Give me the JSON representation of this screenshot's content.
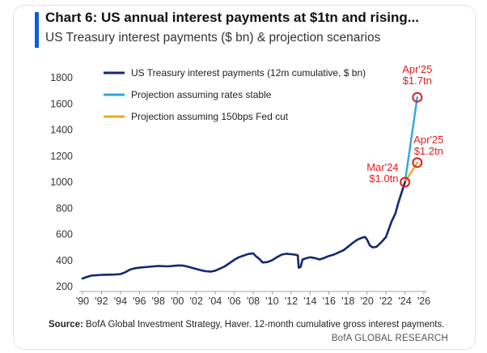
{
  "header": {
    "title": "Chart 6: US annual interest payments at $1tn and rising...",
    "subtitle": "US Treasury interest payments ($ bn) & projection scenarios"
  },
  "footer": {
    "source_label": "Source:",
    "source_text": "BofA Global Investment Strategy, Haver. 12-month cumulative gross interest payments.",
    "brand": "BofA GLOBAL RESEARCH"
  },
  "chart_data": {
    "type": "line",
    "title": "Chart 6: US annual interest payments at $1tn and rising...",
    "subtitle": "US Treasury interest payments ($ bn) & projection scenarios",
    "xlabel": "",
    "ylabel": "",
    "xlim": [
      1990,
      2026
    ],
    "ylim": [
      200,
      1800
    ],
    "y_ticks": [
      200,
      400,
      600,
      800,
      1000,
      1200,
      1400,
      1600,
      1800
    ],
    "x_ticks": [
      "'90",
      "'92",
      "'94",
      "'96",
      "'98",
      "'00",
      "'02",
      "'04",
      "'06",
      "'08",
      "'10",
      "'12",
      "'14",
      "'16",
      "'18",
      "'20",
      "'22",
      "'24",
      "'26"
    ],
    "legend_position": "top-left",
    "series": [
      {
        "name": "US Treasury interest payments (12m cumulative, $ bn)",
        "color": "#14286e",
        "points": [
          [
            1990.0,
            262
          ],
          [
            1990.5,
            275
          ],
          [
            1991.0,
            285
          ],
          [
            1992.0,
            290
          ],
          [
            1993.0,
            292
          ],
          [
            1993.5,
            293
          ],
          [
            1994.0,
            296
          ],
          [
            1994.5,
            310
          ],
          [
            1995.0,
            330
          ],
          [
            1995.5,
            340
          ],
          [
            1996.0,
            345
          ],
          [
            1997.0,
            352
          ],
          [
            1998.0,
            358
          ],
          [
            1999.0,
            355
          ],
          [
            2000.0,
            362
          ],
          [
            2000.5,
            362
          ],
          [
            2001.0,
            355
          ],
          [
            2001.5,
            345
          ],
          [
            2002.0,
            335
          ],
          [
            2002.5,
            325
          ],
          [
            2003.0,
            318
          ],
          [
            2003.5,
            315
          ],
          [
            2004.0,
            322
          ],
          [
            2004.5,
            338
          ],
          [
            2005.0,
            355
          ],
          [
            2005.5,
            380
          ],
          [
            2006.0,
            405
          ],
          [
            2006.5,
            425
          ],
          [
            2007.0,
            438
          ],
          [
            2007.5,
            450
          ],
          [
            2008.0,
            455
          ],
          [
            2008.3,
            432
          ],
          [
            2008.6,
            415
          ],
          [
            2009.0,
            385
          ],
          [
            2009.5,
            388
          ],
          [
            2010.0,
            402
          ],
          [
            2010.5,
            425
          ],
          [
            2011.0,
            445
          ],
          [
            2011.5,
            452
          ],
          [
            2012.0,
            448
          ],
          [
            2012.4,
            445
          ],
          [
            2012.7,
            440
          ],
          [
            2012.8,
            345
          ],
          [
            2013.0,
            350
          ],
          [
            2013.2,
            408
          ],
          [
            2013.5,
            415
          ],
          [
            2014.0,
            425
          ],
          [
            2014.5,
            418
          ],
          [
            2015.0,
            408
          ],
          [
            2015.5,
            420
          ],
          [
            2016.0,
            435
          ],
          [
            2016.5,
            445
          ],
          [
            2017.0,
            462
          ],
          [
            2017.5,
            478
          ],
          [
            2018.0,
            505
          ],
          [
            2018.5,
            535
          ],
          [
            2019.0,
            560
          ],
          [
            2019.5,
            575
          ],
          [
            2019.8,
            580
          ],
          [
            2020.0,
            560
          ],
          [
            2020.3,
            515
          ],
          [
            2020.6,
            500
          ],
          [
            2021.0,
            505
          ],
          [
            2021.5,
            540
          ],
          [
            2022.0,
            580
          ],
          [
            2022.3,
            640
          ],
          [
            2022.6,
            700
          ],
          [
            2023.0,
            760
          ],
          [
            2023.3,
            840
          ],
          [
            2023.6,
            910
          ],
          [
            2024.0,
            1000
          ]
        ]
      },
      {
        "name": "Projection assuming rates stable",
        "color": "#2ea8dc",
        "points": [
          [
            2024.0,
            1000
          ],
          [
            2025.3,
            1650
          ]
        ]
      },
      {
        "name": "Projection assuming 150bps Fed cut",
        "color": "#f5a623",
        "points": [
          [
            2024.0,
            1000
          ],
          [
            2025.3,
            1150
          ]
        ]
      }
    ],
    "annotations": [
      {
        "label_line1": "Mar'24",
        "label_line2": "$1.0tn",
        "x": 2024.0,
        "y": 1000,
        "text_anchor": "left"
      },
      {
        "label_line1": "Apr'25",
        "label_line2": "$1.7tn",
        "x": 2025.3,
        "y": 1650,
        "text_anchor": "above"
      },
      {
        "label_line1": "Apr'25",
        "label_line2": "$1.2tn",
        "x": 2025.3,
        "y": 1150,
        "text_anchor": "above-right"
      }
    ]
  }
}
